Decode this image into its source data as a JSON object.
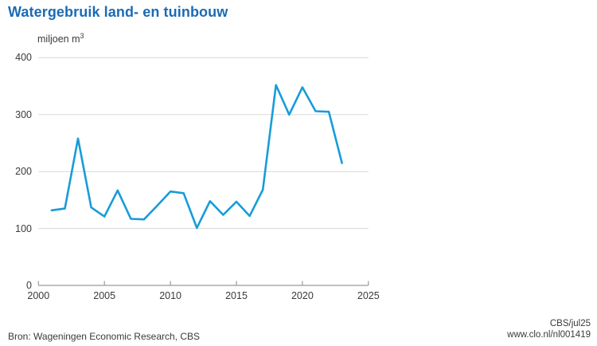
{
  "title": "Watergebruik land- en tuinbouw",
  "unit": {
    "base": "miljoen m",
    "sup": "3"
  },
  "footer": {
    "source": "Bron: Wageningen Economic Research, CBS",
    "credit": "CBS/jul25",
    "link": "www.clo.nl/nl001419"
  },
  "colors": {
    "title": "#1a6bb5",
    "line": "#189cd8",
    "grid": "#d9d9d9",
    "axis": "#9b9b9b",
    "text": "#3a3a3a"
  },
  "chart_data": {
    "type": "line",
    "title": "Watergebruik land- en tuinbouw",
    "ylabel": "miljoen m3",
    "xlabel": "",
    "x": [
      2001,
      2002,
      2003,
      2004,
      2005,
      2006,
      2007,
      2008,
      2009,
      2010,
      2011,
      2012,
      2013,
      2014,
      2015,
      2016,
      2017,
      2018,
      2019,
      2020,
      2021,
      2022,
      2023
    ],
    "values": [
      132,
      135,
      258,
      137,
      121,
      167,
      117,
      116,
      140,
      165,
      162,
      101,
      148,
      124,
      147,
      122,
      168,
      352,
      300,
      348,
      306,
      305,
      215
    ],
    "xlim": [
      2000,
      2025
    ],
    "ylim": [
      0,
      400
    ],
    "xticks": [
      2000,
      2005,
      2010,
      2015,
      2020,
      2025
    ],
    "yticks": [
      0,
      100,
      200,
      300,
      400
    ],
    "grid": "horizontal",
    "legend_position": "none"
  }
}
